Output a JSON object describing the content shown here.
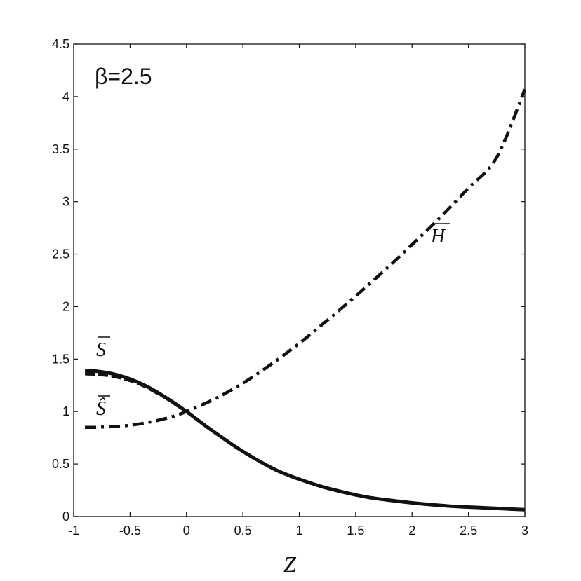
{
  "chart_data": {
    "type": "line",
    "title": "",
    "xlabel": "Z",
    "ylabel": "",
    "xlim": [
      -1,
      3
    ],
    "ylim": [
      0,
      4.5
    ],
    "xticks": [
      -1,
      -0.5,
      0,
      0.5,
      1,
      1.5,
      2,
      2.5,
      3
    ],
    "xtick_labels": [
      "-1",
      "-0.5",
      "0",
      "0.5",
      "1",
      "1.5",
      "2",
      "2.5",
      "3"
    ],
    "yticks": [
      0,
      0.5,
      1,
      1.5,
      2,
      2.5,
      3,
      3.5,
      4,
      4.5
    ],
    "ytick_labels": [
      "0",
      "0.5",
      "1",
      "1.5",
      "2",
      "2.5",
      "3",
      "3.5",
      "4",
      "4.5"
    ],
    "grid": false,
    "annotation": "β=2.5",
    "series": [
      {
        "name": "S",
        "label_text": "S",
        "label_accent": "bar",
        "style": "solid",
        "x": [
          -0.9,
          -0.8,
          -0.7,
          -0.6,
          -0.5,
          -0.4,
          -0.3,
          -0.2,
          -0.1,
          0,
          0.1,
          0.2,
          0.3,
          0.4,
          0.5,
          0.6,
          0.7,
          0.8,
          0.9,
          1,
          1.2,
          1.4,
          1.6,
          1.8,
          2,
          2.2,
          2.4,
          2.6,
          2.8,
          3
        ],
        "y": [
          1.39,
          1.385,
          1.37,
          1.345,
          1.31,
          1.265,
          1.21,
          1.145,
          1.075,
          1.0,
          0.92,
          0.84,
          0.765,
          0.69,
          0.62,
          0.555,
          0.495,
          0.44,
          0.395,
          0.355,
          0.285,
          0.23,
          0.185,
          0.155,
          0.13,
          0.11,
          0.095,
          0.085,
          0.075,
          0.065
        ]
      },
      {
        "name": "Ŝ",
        "label_text": "Ŝ",
        "label_accent": "bar",
        "style": "dashed",
        "x": [
          -0.9,
          -0.8,
          -0.7,
          -0.6,
          -0.5,
          -0.4,
          -0.3,
          -0.2,
          -0.1,
          0,
          0.1,
          0.2
        ],
        "y": [
          1.36,
          1.355,
          1.345,
          1.325,
          1.295,
          1.255,
          1.2,
          1.14,
          1.07,
          1.0,
          0.92,
          0.84
        ]
      },
      {
        "name": "H",
        "label_text": "H",
        "label_accent": "bar",
        "style": "dashdot",
        "x": [
          -0.9,
          -0.8,
          -0.7,
          -0.6,
          -0.5,
          -0.4,
          -0.3,
          -0.2,
          -0.1,
          0,
          0.25,
          0.5,
          0.75,
          1,
          1.25,
          1.5,
          1.75,
          2,
          2.25,
          2.5,
          2.75,
          3
        ],
        "y": [
          0.85,
          0.85,
          0.855,
          0.86,
          0.87,
          0.885,
          0.905,
          0.93,
          0.96,
          1.0,
          1.12,
          1.27,
          1.45,
          1.65,
          1.87,
          2.1,
          2.34,
          2.59,
          2.85,
          3.13,
          3.42,
          4.07
        ]
      }
    ]
  }
}
